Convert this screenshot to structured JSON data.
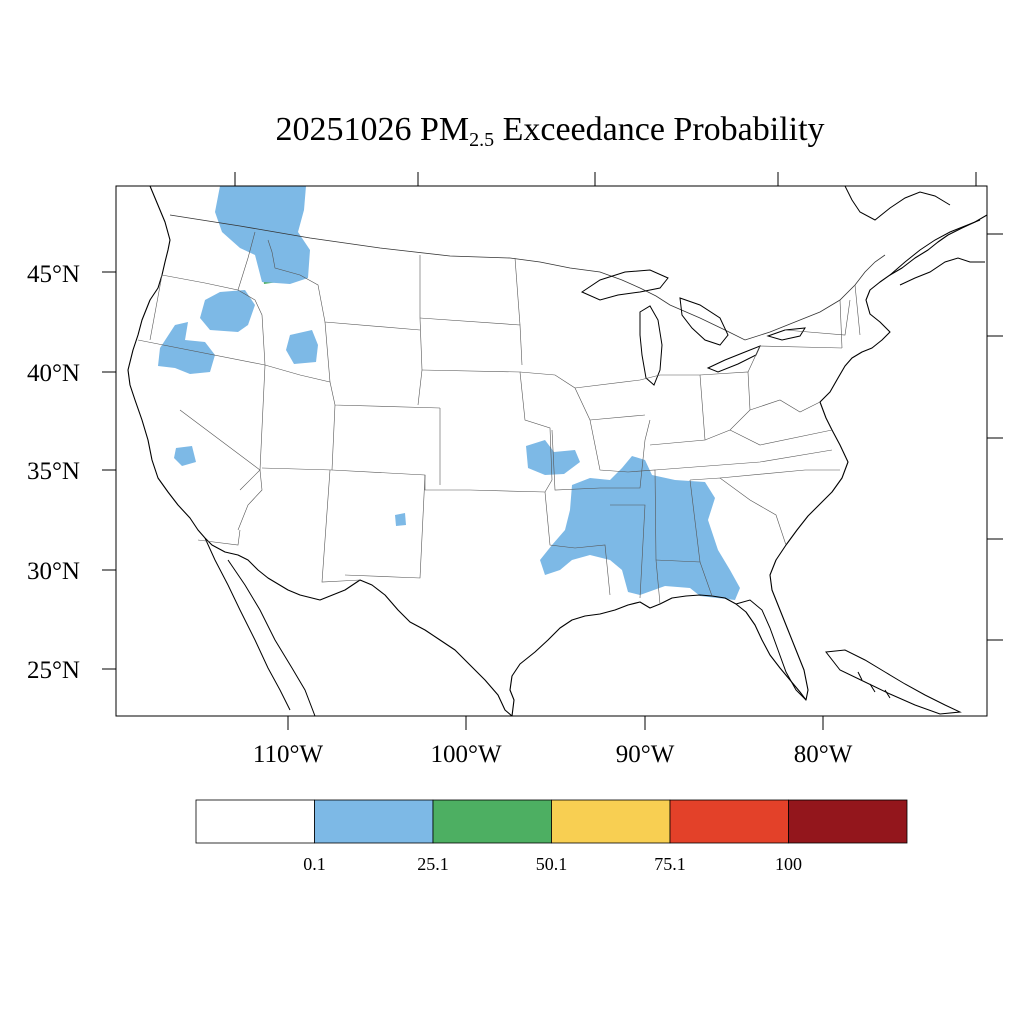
{
  "title": {
    "date": "20251026",
    "species": "PM",
    "species_subscript": "2.5",
    "suffix": "Exceedance Probability"
  },
  "map": {
    "region": "Contiguous United States",
    "lat_labels": [
      "45°N",
      "40°N",
      "35°N",
      "30°N",
      "25°N"
    ],
    "lon_labels": [
      "110°W",
      "100°W",
      "90°W",
      "80°W"
    ],
    "colors": {
      "land_line": "#000000",
      "state_line": "#555555",
      "blue": "#7db9e6",
      "green": "#4daf62",
      "yellow": "#f8cf52"
    }
  },
  "colorbar": {
    "bins": [
      {
        "color": "#ffffff"
      },
      {
        "color": "#7db9e6"
      },
      {
        "color": "#4daf62"
      },
      {
        "color": "#f8cf52"
      },
      {
        "color": "#e34129"
      },
      {
        "color": "#93161c"
      }
    ],
    "labels": [
      "0.1",
      "25.1",
      "50.1",
      "75.1",
      "100"
    ]
  }
}
